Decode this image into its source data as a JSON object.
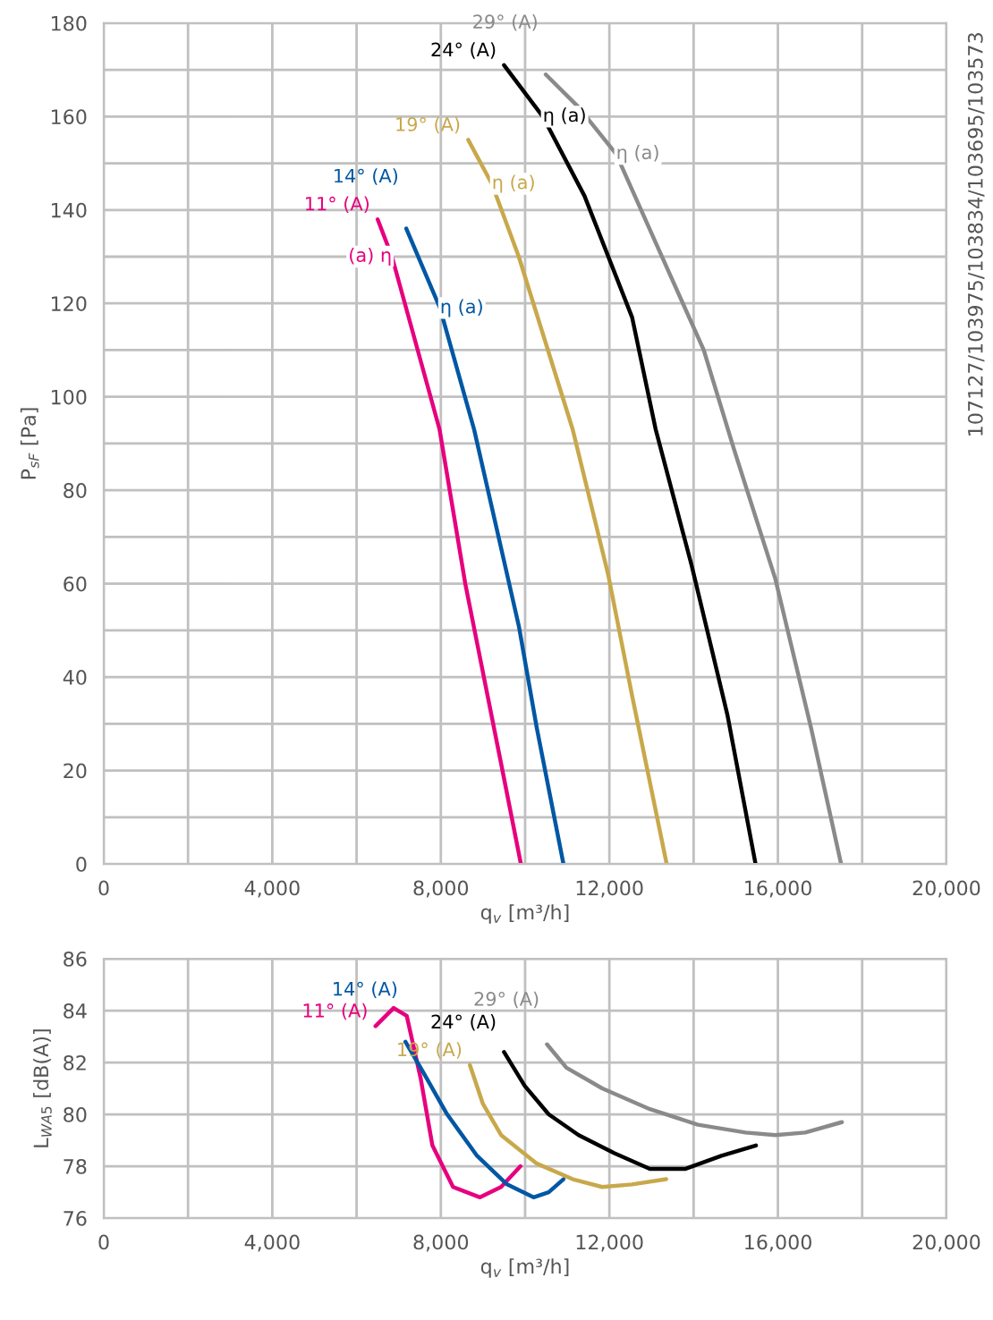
{
  "chart_data": [
    {
      "type": "line",
      "xlabel": "q$_{v}$ [m³/h]",
      "ylabel": "P$_{sF}$ [Pa]",
      "xlim": [
        0,
        20000
      ],
      "ylim": [
        0,
        180
      ],
      "xticks": [
        0,
        {
          "value": 2000,
          "label": null
        },
        {
          "value": 4000,
          "label": "4,000"
        },
        {
          "value": 6000,
          "label": null
        },
        {
          "value": 8000,
          "label": "8,000"
        },
        {
          "value": 10000,
          "label": null
        },
        {
          "value": 12000,
          "label": "12,000"
        },
        {
          "value": 14000,
          "label": null
        },
        {
          "value": 16000,
          "label": "16,000"
        },
        {
          "value": 18000,
          "label": null
        },
        {
          "value": 20000,
          "label": "20,000"
        }
      ],
      "yticks": [
        0,
        {
          "value": 10,
          "label": null
        },
        20,
        {
          "value": 30,
          "label": null
        },
        40,
        {
          "value": 50,
          "label": null
        },
        60,
        {
          "value": 70,
          "label": null
        },
        80,
        {
          "value": 90,
          "label": null
        },
        100,
        {
          "value": 110,
          "label": null
        },
        120,
        {
          "value": 130,
          "label": null
        },
        140,
        {
          "value": 150,
          "label": null
        },
        160,
        {
          "value": 170,
          "label": null
        },
        180
      ],
      "grid": true,
      "series": [
        {
          "name": "11° (A)",
          "color": "#e6007e",
          "x": [
            6500,
            6840,
            7970,
            8580,
            9430,
            9900
          ],
          "values": [
            138,
            130,
            93,
            60,
            21.5,
            0
          ]
        },
        {
          "name": "14° (A)",
          "color": "#0057a3",
          "x": [
            7180,
            7980,
            8790,
            9850,
            10280,
            10910
          ],
          "values": [
            136,
            119,
            93,
            51,
            29,
            0
          ]
        },
        {
          "name": "19° (A)",
          "color": "#c8a84b",
          "x": [
            8650,
            9210,
            9850,
            11130,
            11970,
            12540,
            13360
          ],
          "values": [
            155,
            145.6,
            130,
            93,
            62,
            36,
            0
          ]
        },
        {
          "name": "24° (A)",
          "color": "#000000",
          "x": [
            9500,
            10420,
            11410,
            12540,
            13100,
            13950,
            14800,
            15470
          ],
          "values": [
            171,
            160,
            143,
            117,
            93,
            64,
            32,
            0
          ]
        },
        {
          "name": "29° (A)",
          "color": "#8a8a8a",
          "x": [
            10490,
            11270,
            12160,
            13100,
            14240,
            14950,
            15940,
            16790,
            17500
          ],
          "values": [
            169,
            162,
            152,
            133,
            110,
            89,
            61,
            29,
            0
          ]
        }
      ],
      "annotations": [
        {
          "text": "(a) η",
          "x": 6840,
          "y": 130
        },
        {
          "text": "η (a)",
          "x": 7980,
          "y": 119
        },
        {
          "text": "η (a)",
          "x": 9210,
          "y": 145.6
        },
        {
          "text": "η (a)",
          "x": 10420,
          "y": 160
        },
        {
          "text": "η (a)",
          "x": 12160,
          "y": 152
        },
        "107127/103975/103834/103695/103573"
      ]
    },
    {
      "type": "line",
      "xlabel": "q$_{v}$ [m³/h]",
      "ylabel": "L$_{WA5}$ [dB(A)]",
      "xlim": [
        0,
        20000
      ],
      "ylim": [
        76,
        86
      ],
      "xticks": [
        0,
        {
          "value": 2000,
          "label": null
        },
        {
          "value": 4000,
          "label": "4,000"
        },
        {
          "value": 6000,
          "label": null
        },
        {
          "value": 8000,
          "label": "8,000"
        },
        {
          "value": 10000,
          "label": null
        },
        {
          "value": 12000,
          "label": "12,000"
        },
        {
          "value": 14000,
          "label": null
        },
        {
          "value": 16000,
          "label": "16,000"
        },
        {
          "value": 18000,
          "label": null
        },
        {
          "value": 20000,
          "label": "20,000"
        }
      ],
      "yticks": [
        76,
        78,
        80,
        82,
        84,
        86
      ],
      "grid": true,
      "series": [
        {
          "name": "11° (A)",
          "color": "#e6007e",
          "x": [
            6450,
            6880,
            7190,
            7520,
            7800,
            8290,
            8930,
            9430,
            9890
          ],
          "values": [
            83.4,
            84.1,
            83.8,
            81.4,
            78.8,
            77.2,
            76.8,
            77.2,
            78
          ]
        },
        {
          "name": "14° (A)",
          "color": "#0057a3",
          "x": [
            7160,
            7590,
            8150,
            8860,
            9570,
            10200,
            10560,
            10910
          ],
          "values": [
            82.8,
            81.6,
            80,
            78.4,
            77.3,
            76.8,
            77,
            77.5
          ]
        },
        {
          "name": "19° (A)",
          "color": "#c8a84b",
          "x": [
            8690,
            9000,
            9430,
            10280,
            11130,
            11830,
            12540,
            13350
          ],
          "values": [
            81.9,
            80.4,
            79.2,
            78.1,
            77.5,
            77.2,
            77.3,
            77.5
          ]
        },
        {
          "name": "24° (A)",
          "color": "#000000",
          "x": [
            9500,
            9990,
            10560,
            11270,
            12120,
            12960,
            13810,
            14660,
            15480
          ],
          "values": [
            82.4,
            81.1,
            80,
            79.2,
            78.5,
            77.9,
            77.9,
            78.4,
            78.8
          ]
        },
        {
          "name": "29° (A)",
          "color": "#8a8a8a",
          "x": [
            10520,
            10980,
            11830,
            12960,
            14100,
            15230,
            15940,
            16650,
            17520
          ],
          "values": [
            82.7,
            81.8,
            81,
            80.2,
            79.6,
            79.3,
            79.2,
            79.3,
            79.7
          ]
        }
      ]
    }
  ]
}
